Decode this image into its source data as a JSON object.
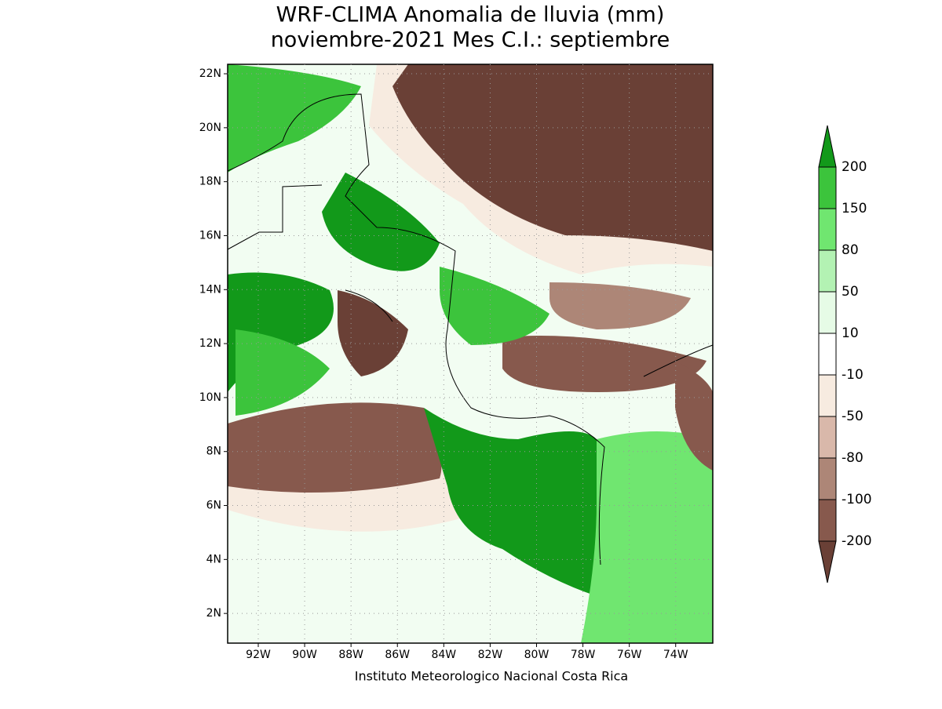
{
  "title": [
    "WRF-CLIMA Anomalia de lluvia (mm)",
    "noviembre-2021 Mes C.I.: septiembre"
  ],
  "map": {
    "lonlim": [
      -93.32,
      -72.4
    ],
    "latlim": [
      0.9,
      22.35
    ],
    "lon_ticks": [
      {
        "value": -92,
        "label": "92W"
      },
      {
        "value": -90,
        "label": "90W"
      },
      {
        "value": -88,
        "label": "88W"
      },
      {
        "value": -86,
        "label": "86W"
      },
      {
        "value": -84,
        "label": "84W"
      },
      {
        "value": -82,
        "label": "82W"
      },
      {
        "value": -80,
        "label": "80W"
      },
      {
        "value": -78,
        "label": "78W"
      },
      {
        "value": -76,
        "label": "76W"
      },
      {
        "value": -74,
        "label": "74W"
      }
    ],
    "lat_ticks": [
      {
        "value": 2,
        "label": "2N"
      },
      {
        "value": 4,
        "label": "4N"
      },
      {
        "value": 6,
        "label": "6N"
      },
      {
        "value": 8,
        "label": "8N"
      },
      {
        "value": 10,
        "label": "10N"
      },
      {
        "value": 12,
        "label": "12N"
      },
      {
        "value": 14,
        "label": "14N"
      },
      {
        "value": 16,
        "label": "16N"
      },
      {
        "value": 18,
        "label": "18N"
      },
      {
        "value": 20,
        "label": "20N"
      },
      {
        "value": 22,
        "label": "22N"
      }
    ],
    "grid": true
  },
  "colorbar": {
    "levels": [
      -200,
      -100,
      -80,
      -50,
      -10,
      10,
      50,
      80,
      150,
      200
    ],
    "colors": [
      "#6a4036",
      "#87594d",
      "#ad8677",
      "#d9b8aa",
      "#f7ebe0",
      "#ffffff",
      "#e6fbe6",
      "#b3f2b3",
      "#70e670",
      "#3cc43c",
      "#12991a"
    ]
  },
  "footer": "Instituto Meteorologico Nacional Costa Rica"
}
